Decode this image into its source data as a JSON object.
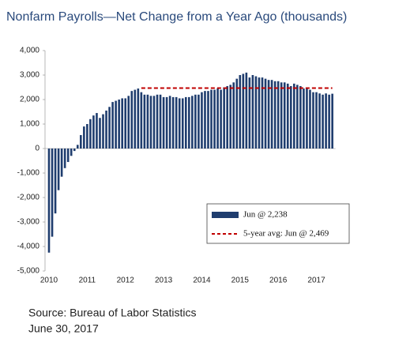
{
  "chart_data": {
    "type": "bar",
    "title": "Nonfarm Payrolls—Net Change from a Year Ago (thousands)",
    "categories": [
      "2010",
      null,
      null,
      null,
      null,
      null,
      null,
      null,
      null,
      null,
      null,
      null,
      "2011",
      null,
      null,
      null,
      null,
      null,
      null,
      null,
      null,
      null,
      null,
      null,
      "2012",
      null,
      null,
      null,
      null,
      null,
      null,
      null,
      null,
      null,
      null,
      null,
      "2013",
      null,
      null,
      null,
      null,
      null,
      null,
      null,
      null,
      null,
      null,
      null,
      "2014",
      null,
      null,
      null,
      null,
      null,
      null,
      null,
      null,
      null,
      null,
      null,
      "2015",
      null,
      null,
      null,
      null,
      null,
      null,
      null,
      null,
      null,
      null,
      null,
      "2016",
      null,
      null,
      null,
      null,
      null,
      null,
      null,
      null,
      null,
      null,
      null,
      "2017",
      null,
      null,
      null,
      null,
      null
    ],
    "series": [
      {
        "name": "Jun @ 2,238",
        "type": "bar",
        "color": "#1f3d6e",
        "values": [
          -4250,
          -3600,
          -2650,
          -1700,
          -1150,
          -800,
          -550,
          -300,
          -100,
          150,
          550,
          900,
          1000,
          1200,
          1350,
          1450,
          1250,
          1400,
          1550,
          1700,
          1900,
          1950,
          2000,
          2050,
          2050,
          2150,
          2350,
          2400,
          2450,
          2300,
          2200,
          2200,
          2150,
          2150,
          2200,
          2200,
          2100,
          2100,
          2150,
          2100,
          2100,
          2050,
          2050,
          2100,
          2100,
          2150,
          2200,
          2200,
          2300,
          2350,
          2350,
          2400,
          2400,
          2450,
          2400,
          2500,
          2550,
          2600,
          2700,
          2850,
          3000,
          3050,
          3100,
          2900,
          3000,
          2950,
          2900,
          2900,
          2850,
          2800,
          2800,
          2750,
          2750,
          2700,
          2700,
          2650,
          2550,
          2650,
          2600,
          2550,
          2450,
          2450,
          2400,
          2300,
          2300,
          2250,
          2200,
          2250,
          2200,
          2238
        ]
      },
      {
        "name": "5-year avg: Jun @ 2,469",
        "type": "line",
        "color": "#c00000",
        "values": [
          null,
          null,
          null,
          null,
          null,
          null,
          null,
          null,
          null,
          null,
          null,
          null,
          null,
          null,
          null,
          null,
          null,
          null,
          null,
          null,
          null,
          null,
          null,
          null,
          null,
          null,
          null,
          null,
          null,
          2469,
          2469,
          2469,
          2469,
          2469,
          2469,
          2469,
          2469,
          2469,
          2469,
          2469,
          2469,
          2469,
          2469,
          2469,
          2469,
          2469,
          2469,
          2469,
          2469,
          2469,
          2469,
          2469,
          2469,
          2469,
          2469,
          2469,
          2469,
          2469,
          2469,
          2469,
          2469,
          2469,
          2469,
          2469,
          2469,
          2469,
          2469,
          2469,
          2469,
          2469,
          2469,
          2469,
          2469,
          2469,
          2469,
          2469,
          2469,
          2469,
          2469,
          2469,
          2469,
          2469,
          2469,
          2469,
          2469,
          2469,
          2469,
          2469,
          2469,
          2469
        ]
      }
    ],
    "ylim": [
      -5000,
      4000
    ],
    "yticks": [
      {
        "value": -5000,
        "label": "-5,000"
      },
      {
        "value": -4000,
        "label": "-4,000"
      },
      {
        "value": -3000,
        "label": "-3,000"
      },
      {
        "value": -2000,
        "label": "-2,000"
      },
      {
        "value": -1000,
        "label": "-1,000"
      },
      0,
      {
        "value": 1000,
        "label": "1,000"
      },
      {
        "value": 2000,
        "label": "2,000"
      },
      {
        "value": 3000,
        "label": "3,000"
      },
      {
        "value": 4000,
        "label": "4,000"
      }
    ],
    "grid": false,
    "legend": "lower-right",
    "source": "Source: Bureau of Labor Statistics",
    "date": "June 30, 2017"
  }
}
